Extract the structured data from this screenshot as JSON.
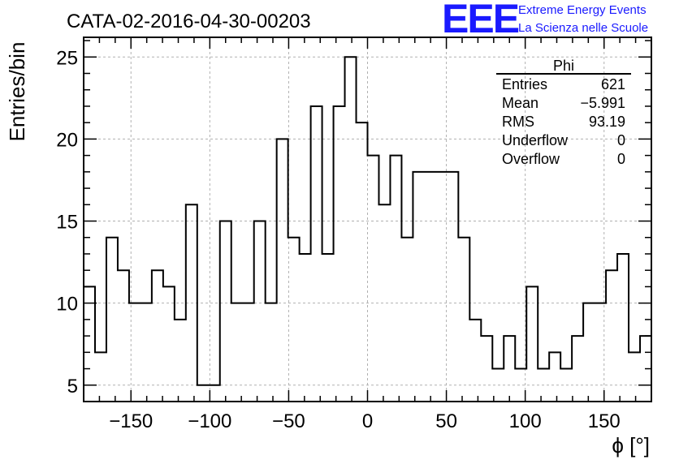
{
  "header": {
    "title": "CATA-02-2016-04-30-00203",
    "logo_text": "EEE",
    "brand_line1": "Extreme Energy Events",
    "brand_line2": "La Scienza nelle Scuole"
  },
  "stats_box": {
    "title": "Phi",
    "rows": [
      {
        "label": "Entries",
        "value": "621"
      },
      {
        "label": "Mean",
        "value": "−5.991"
      },
      {
        "label": "RMS",
        "value": "93.19"
      },
      {
        "label": "Underflow",
        "value": "0"
      },
      {
        "label": "Overflow",
        "value": "0"
      }
    ]
  },
  "colors": {
    "line": "#000000",
    "grid": "#b0b0b0",
    "brand": "#1a1aff"
  },
  "chart_data": {
    "type": "histogram",
    "xlabel": "ϕ [°]",
    "ylabel": "Entries/bin",
    "xlim": [
      -180,
      180
    ],
    "ylim": [
      4,
      26.2
    ],
    "bin_width": 7.2,
    "xticks": [
      -150,
      -100,
      -50,
      0,
      50,
      100,
      150
    ],
    "xtick_labels": [
      "−150",
      "−100",
      "−50",
      "0",
      "50",
      "100",
      "150"
    ],
    "yticks": [
      5,
      10,
      15,
      20,
      25
    ],
    "ytick_labels": [
      "5",
      "10",
      "15",
      "20",
      "25"
    ],
    "grid": true,
    "bin_edges_start": -180,
    "values": [
      11,
      7,
      14,
      12,
      10,
      10,
      12,
      11,
      9,
      16,
      5,
      5,
      15,
      10,
      10,
      15,
      10,
      20,
      14,
      13,
      22,
      13,
      22,
      25,
      21,
      19,
      16,
      19,
      14,
      18,
      18,
      18,
      18,
      14,
      9,
      8,
      6,
      8,
      6,
      11,
      6,
      7,
      6,
      8,
      10,
      10,
      12,
      13,
      7,
      8
    ]
  }
}
